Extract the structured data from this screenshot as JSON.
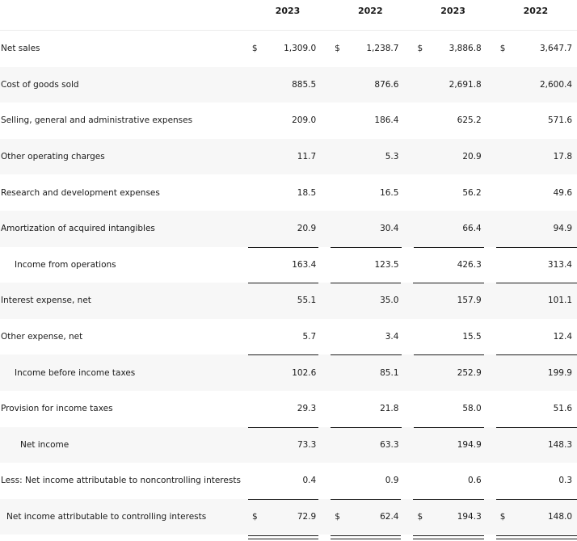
{
  "columns": [
    "2023",
    "2022",
    "2023",
    "2022"
  ],
  "currency_symbol": "$",
  "rows": [
    {
      "label": "Net sales",
      "values": [
        "1,309.0",
        "1,238.7",
        "3,886.8",
        "3,647.7"
      ]
    },
    {
      "label": "Cost of goods sold",
      "values": [
        "885.5",
        "876.6",
        "2,691.8",
        "2,600.4"
      ]
    },
    {
      "label": "Selling, general and administrative expenses",
      "values": [
        "209.0",
        "186.4",
        "625.2",
        "571.6"
      ]
    },
    {
      "label": "Other operating charges",
      "values": [
        "11.7",
        "5.3",
        "20.9",
        "17.8"
      ]
    },
    {
      "label": "Research and development expenses",
      "values": [
        "18.5",
        "16.5",
        "56.2",
        "49.6"
      ]
    },
    {
      "label": "Amortization of acquired intangibles",
      "values": [
        "20.9",
        "30.4",
        "66.4",
        "94.9"
      ]
    },
    {
      "label": "Income from operations",
      "values": [
        "163.4",
        "123.5",
        "426.3",
        "313.4"
      ]
    },
    {
      "label": "Interest expense, net",
      "values": [
        "55.1",
        "35.0",
        "157.9",
        "101.1"
      ]
    },
    {
      "label": "Other expense, net",
      "values": [
        "5.7",
        "3.4",
        "15.5",
        "12.4"
      ]
    },
    {
      "label": "Income before income taxes",
      "values": [
        "102.6",
        "85.1",
        "252.9",
        "199.9"
      ]
    },
    {
      "label": "Provision for income taxes",
      "values": [
        "29.3",
        "21.8",
        "58.0",
        "51.6"
      ]
    },
    {
      "label": "Net income",
      "values": [
        "73.3",
        "63.3",
        "194.9",
        "148.3"
      ]
    },
    {
      "label": "Less: Net income attributable to noncontrolling interests",
      "values": [
        "0.4",
        "0.9",
        "0.6",
        "0.3"
      ]
    },
    {
      "label": "Net income attributable to controlling interests",
      "values": [
        "72.9",
        "62.4",
        "194.3",
        "148.0"
      ]
    }
  ]
}
